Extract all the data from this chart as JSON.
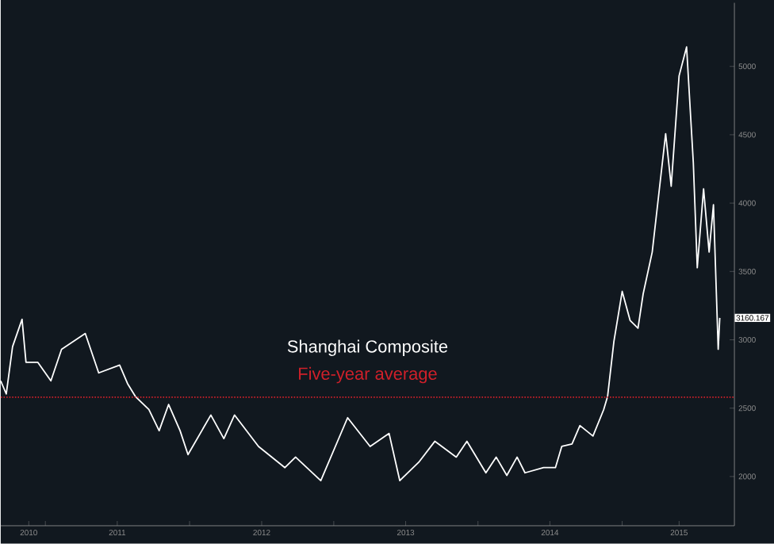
{
  "chart_data": {
    "type": "line",
    "x": [
      "2010-09-10",
      "2010-09-24",
      "2010-10-10",
      "2010-11-03",
      "2010-11-13",
      "2010-12-13",
      "2011-01-15",
      "2011-02-11",
      "2011-04-12",
      "2011-05-16",
      "2011-07-08",
      "2011-07-28",
      "2011-08-17",
      "2011-09-20",
      "2011-10-16",
      "2011-11-09",
      "2011-12-08",
      "2011-12-28",
      "2012-02-24",
      "2012-03-28",
      "2012-04-24",
      "2012-06-24",
      "2012-08-30",
      "2012-09-26",
      "2012-11-29",
      "2013-02-05",
      "2013-04-03",
      "2013-05-21",
      "2013-06-17",
      "2013-08-04",
      "2013-09-14",
      "2013-11-07",
      "2013-12-04",
      "2014-01-21",
      "2014-02-16",
      "2014-03-15",
      "2014-04-10",
      "2014-04-30",
      "2014-06-16",
      "2014-07-16",
      "2014-08-01",
      "2014-08-27",
      "2014-09-16",
      "2014-10-19",
      "2014-11-15",
      "2014-11-25",
      "2014-12-11",
      "2015-01-01",
      "2015-01-21",
      "2015-02-10",
      "2015-02-23",
      "2015-03-18",
      "2015-04-21",
      "2015-05-05",
      "2015-05-25",
      "2015-06-13",
      "2015-06-30",
      "2015-07-10",
      "2015-07-26",
      "2015-08-09",
      "2015-08-20",
      "2015-09-01",
      "2015-09-05"
    ],
    "series": [
      {
        "name": "Shanghai Composite",
        "color": "#ffffff",
        "values": [
          2700,
          2604,
          2950,
          3150,
          2835,
          2835,
          2700,
          2930,
          3046,
          2758,
          2815,
          2680,
          2585,
          2490,
          2335,
          2527,
          2335,
          2160,
          2450,
          2277,
          2450,
          2220,
          2065,
          2142,
          1970,
          2430,
          2220,
          2315,
          1970,
          2104,
          2258,
          2142,
          2258,
          2027,
          2142,
          2008,
          2142,
          2027,
          2065,
          2065,
          2220,
          2238,
          2373,
          2296,
          2488,
          2585,
          2988,
          3354,
          3142,
          3085,
          3335,
          3642,
          4508,
          4123,
          4931,
          5142,
          4296,
          3527,
          4104,
          3642,
          3988,
          2931,
          3160.167
        ]
      }
    ],
    "xlim": [
      "2010-09-10",
      "2015-10-12"
    ],
    "xticks": [
      {
        "value": "2010-11-20",
        "label": "2010"
      },
      {
        "value": "2011-01-01",
        "label": null
      },
      {
        "value": "2011-07-02",
        "label": "2011"
      },
      {
        "value": "2012-01-01",
        "label": null
      },
      {
        "value": "2012-07-02",
        "label": "2012"
      },
      {
        "value": "2013-01-01",
        "label": null
      },
      {
        "value": "2013-07-02",
        "label": "2013"
      },
      {
        "value": "2014-01-01",
        "label": null
      },
      {
        "value": "2014-07-02",
        "label": "2014"
      },
      {
        "value": "2015-01-01",
        "label": null
      },
      {
        "value": "2015-05-25",
        "label": "2015"
      }
    ],
    "ylim": [
      1640,
      5465
    ],
    "yticks": [
      2000,
      2500,
      3000,
      3500,
      4000,
      4500,
      5000
    ],
    "ref_lines": [
      {
        "axis": "y",
        "value": 2580,
        "label": "Five-year average",
        "color": "#d0202a",
        "line_style": "dotted"
      }
    ],
    "annotations": [
      {
        "text": "3160.167",
        "x": "2015-09-05",
        "y": 3160.167
      }
    ],
    "grid": false
  }
}
